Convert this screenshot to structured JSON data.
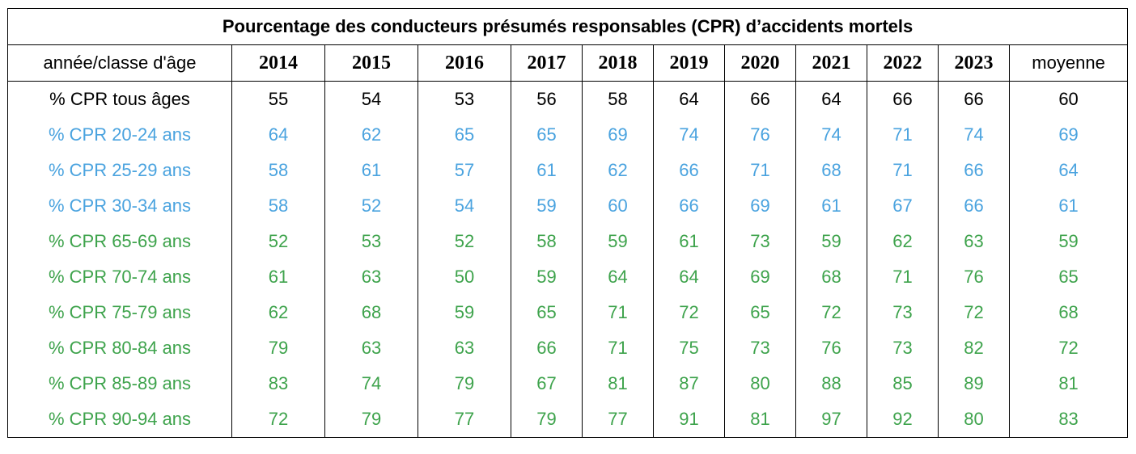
{
  "colors": {
    "black": "#000000",
    "blue": "#4aa3df",
    "green": "#3ea34c"
  },
  "chart_data": {
    "type": "table",
    "title": "Pourcentage des conducteurs présumés responsables (CPR) d’accidents mortels",
    "corner_label": "année/classe d'âge",
    "columns": [
      "2014",
      "2015",
      "2016",
      "2017",
      "2018",
      "2019",
      "2020",
      "2021",
      "2022",
      "2023",
      "moyenne"
    ],
    "rows": [
      {
        "label": "% CPR tous âges",
        "group": "black",
        "values": [
          55,
          54,
          53,
          56,
          58,
          64,
          66,
          64,
          66,
          66,
          60
        ]
      },
      {
        "label": "% CPR 20-24 ans",
        "group": "blue",
        "values": [
          64,
          62,
          65,
          65,
          69,
          74,
          76,
          74,
          71,
          74,
          69
        ]
      },
      {
        "label": "% CPR 25-29 ans",
        "group": "blue",
        "values": [
          58,
          61,
          57,
          61,
          62,
          66,
          71,
          68,
          71,
          66,
          64
        ]
      },
      {
        "label": "% CPR 30-34 ans",
        "group": "blue",
        "values": [
          58,
          52,
          54,
          59,
          60,
          66,
          69,
          61,
          67,
          66,
          61
        ]
      },
      {
        "label": "% CPR 65-69 ans",
        "group": "green",
        "values": [
          52,
          53,
          52,
          58,
          59,
          61,
          73,
          59,
          62,
          63,
          59
        ]
      },
      {
        "label": "% CPR 70-74 ans",
        "group": "green",
        "values": [
          61,
          63,
          50,
          59,
          64,
          64,
          69,
          68,
          71,
          76,
          65
        ]
      },
      {
        "label": "% CPR 75-79 ans",
        "group": "green",
        "values": [
          62,
          68,
          59,
          65,
          71,
          72,
          65,
          72,
          73,
          72,
          68
        ]
      },
      {
        "label": "% CPR 80-84 ans",
        "group": "green",
        "values": [
          79,
          63,
          63,
          66,
          71,
          75,
          73,
          76,
          73,
          82,
          72
        ]
      },
      {
        "label": "% CPR 85-89 ans",
        "group": "green",
        "values": [
          83,
          74,
          79,
          67,
          81,
          87,
          80,
          88,
          85,
          89,
          81
        ]
      },
      {
        "label": "% CPR 90-94 ans",
        "group": "green",
        "values": [
          72,
          79,
          77,
          79,
          77,
          91,
          81,
          97,
          92,
          80,
          83
        ]
      }
    ]
  }
}
